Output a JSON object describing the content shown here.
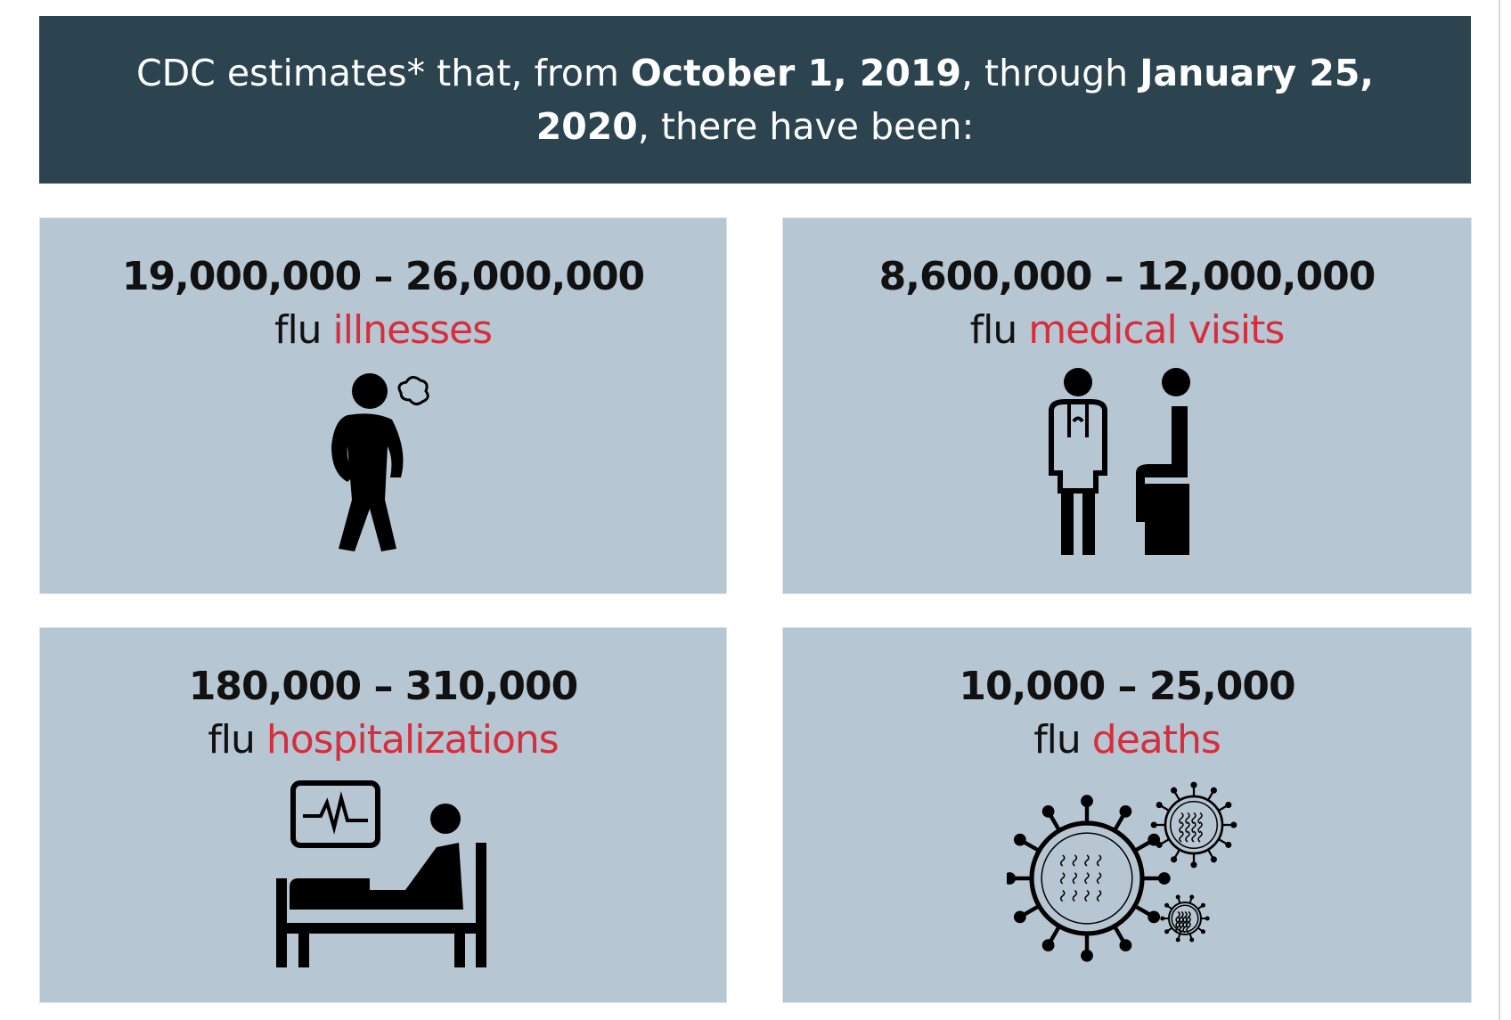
{
  "header": {
    "text1": "CDC estimates* that, from ",
    "date1": "October 1, 2019",
    "text2": ", through ",
    "date2": "January 25, 2020",
    "text3": ", there have been:"
  },
  "cards": [
    {
      "range": "19,000,000 – 26,000,000",
      "prefix": "flu ",
      "highlight": "illnesses"
    },
    {
      "range": "8,600,000 – 12,000,000",
      "prefix": "flu ",
      "highlight": "medical visits"
    },
    {
      "range": "180,000 – 310,000",
      "prefix": "flu ",
      "highlight": "hospitalizations"
    },
    {
      "range": "10,000 – 25,000",
      "prefix": "flu ",
      "highlight": "deaths"
    }
  ]
}
